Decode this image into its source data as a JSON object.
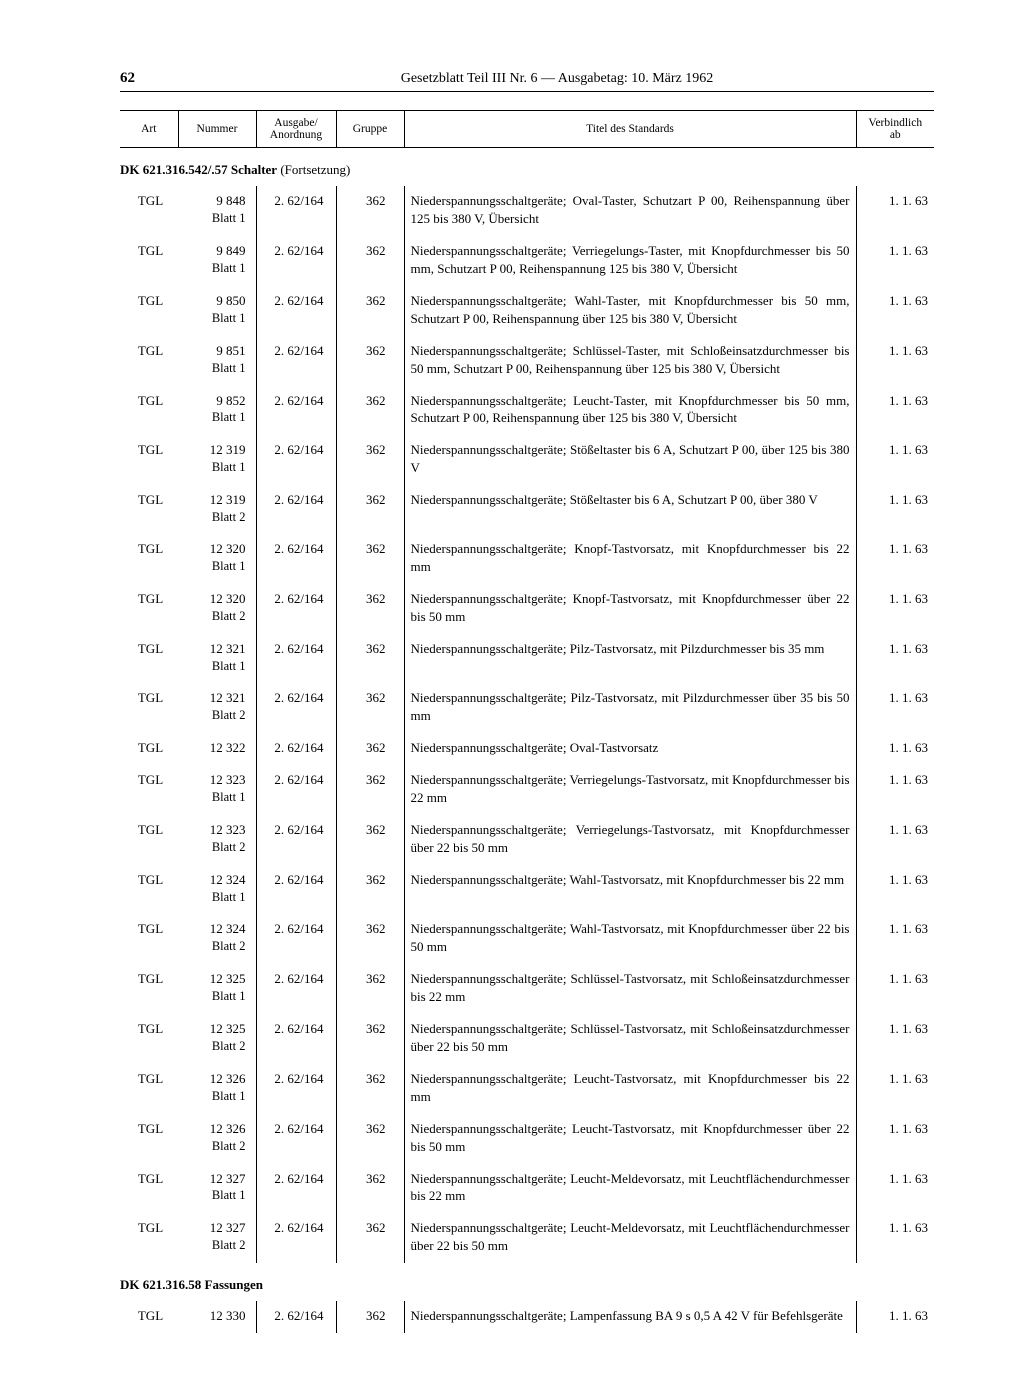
{
  "page_number": "62",
  "header": "Gesetzblatt Teil III Nr. 6 — Ausgabetag: 10. März 1962",
  "columns": {
    "art": "Art",
    "nummer": "Nummer",
    "ausgabe": "Ausgabe/\nAnordnung",
    "gruppe": "Gruppe",
    "titel": "Titel des Standards",
    "verbindlich": "Verbindlich\nab"
  },
  "section1": {
    "code": "DK 621.316.542/.57 Schalter",
    "suffix": "(Fortsetzung)"
  },
  "section2": {
    "code": "DK 621.316.58 Fassungen"
  },
  "rows1": [
    {
      "art": "TGL",
      "num": "9 848",
      "sub": "Blatt 1",
      "ausg": "2. 62/164",
      "grp": "362",
      "title": "Niederspannungsschaltgeräte; Oval-Taster, Schutz­art P 00, Reihenspannung über 125 bis 380 V, Übersicht",
      "verb": "1.  1. 63"
    },
    {
      "art": "TGL",
      "num": "9 849",
      "sub": "Blatt 1",
      "ausg": "2. 62/164",
      "grp": "362",
      "title": "Niederspannungsschaltgeräte; Verriegelungs-Taster, mit Knopfdurchmesser bis 50 mm, Schutz­art P 00, Reihenspannung 125 bis 380 V, Übersicht",
      "verb": "1.  1. 63"
    },
    {
      "art": "TGL",
      "num": "9 850",
      "sub": "Blatt 1",
      "ausg": "2. 62/164",
      "grp": "362",
      "title": "Niederspannungsschaltgeräte; Wahl-Taster, mit Knopfdurchmesser bis 50 mm, Schutzart P 00, Reihenspannung über 125 bis 380 V, Übersicht",
      "verb": "1.  1. 63"
    },
    {
      "art": "TGL",
      "num": "9 851",
      "sub": "Blatt 1",
      "ausg": "2. 62/164",
      "grp": "362",
      "title": "Niederspannungsschaltgeräte; Schlüssel-Taster, mit Schloßeinsatzdurchmesser bis 50 mm, Schutzart P 00, Reihenspannung über 125 bis 380 V, Über­sicht",
      "verb": "1.  1. 63"
    },
    {
      "art": "TGL",
      "num": "9 852",
      "sub": "Blatt 1",
      "ausg": "2. 62/164",
      "grp": "362",
      "title": "Niederspannungsschaltgeräte; Leucht-Taster, mit Knopfdurchmesser bis 50 mm, Schutzart P 00, Reihenspannung über 125 bis 380 V, Übersicht",
      "verb": "1.  1. 63"
    },
    {
      "art": "TGL",
      "num": "12 319",
      "sub": "Blatt 1",
      "ausg": "2. 62/164",
      "grp": "362",
      "title": "Niederspannungsschaltgeräte; Stößeltaster bis 6 A, Schutzart P 00, über 125 bis 380 V",
      "verb": "1.  1. 63"
    },
    {
      "art": "TGL",
      "num": "12 319",
      "sub": "Blatt 2",
      "ausg": "2. 62/164",
      "grp": "362",
      "title": "Niederspannungsschaltgeräte; Stößeltaster bis 6 A, Schutzart P 00, über 380 V",
      "verb": "1.  1. 63"
    },
    {
      "art": "TGL",
      "num": "12 320",
      "sub": "Blatt 1",
      "ausg": "2. 62/164",
      "grp": "362",
      "title": "Niederspannungsschaltgeräte; Knopf-Tastvorsatz, mit Knopfdurchmesser bis 22 mm",
      "verb": "1.  1. 63"
    },
    {
      "art": "TGL",
      "num": "12 320",
      "sub": "Blatt 2",
      "ausg": "2. 62/164",
      "grp": "362",
      "title": "Niederspannungsschaltgeräte; Knopf-Tastvorsatz, mit Knopfdurchmesser über 22 bis 50 mm",
      "verb": "1.  1. 63"
    },
    {
      "art": "TGL",
      "num": "12 321",
      "sub": "Blatt 1",
      "ausg": "2. 62/164",
      "grp": "362",
      "title": "Niederspannungsschaltgeräte; Pilz-Tastvorsatz, mit Pilzdurchmesser bis 35 mm",
      "verb": "1.  1. 63"
    },
    {
      "art": "TGL",
      "num": "12 321",
      "sub": "Blatt 2",
      "ausg": "2. 62/164",
      "grp": "362",
      "title": "Niederspannungsschaltgeräte; Pilz-Tastvorsatz, mit Pilzdurchmesser über 35 bis 50 mm",
      "verb": "1.  1. 63"
    },
    {
      "art": "TGL",
      "num": "12 322",
      "sub": "",
      "ausg": "2. 62/164",
      "grp": "362",
      "title": "Niederspannungsschaltgeräte; Oval-Tastvorsatz",
      "verb": "1.  1. 63"
    },
    {
      "art": "TGL",
      "num": "12 323",
      "sub": "Blatt 1",
      "ausg": "2. 62/164",
      "grp": "362",
      "title": "Niederspannungsschaltgeräte; Verriegelungs-Tast­vorsatz, mit Knopfdurchmesser bis 22 mm",
      "verb": "1.  1. 63"
    },
    {
      "art": "TGL",
      "num": "12 323",
      "sub": "Blatt 2",
      "ausg": "2. 62/164",
      "grp": "362",
      "title": "Niederspannungsschaltgeräte; Verriegelungs-Tast­vorsatz, mit Knopfdurchmesser über 22 bis 50 mm",
      "verb": "1.  1. 63"
    },
    {
      "art": "TGL",
      "num": "12 324",
      "sub": "Blatt 1",
      "ausg": "2. 62/164",
      "grp": "362",
      "title": "Niederspannungsschaltgeräte; Wahl-Tastvorsatz, mit Knopfdurchmesser bis 22 mm",
      "verb": "1.  1. 63"
    },
    {
      "art": "TGL",
      "num": "12 324",
      "sub": "Blatt 2",
      "ausg": "2. 62/164",
      "grp": "362",
      "title": "Niederspannungsschaltgeräte; Wahl-Tastvorsatz, mit Knopfdurchmesser über 22 bis 50 mm",
      "verb": "1.  1. 63"
    },
    {
      "art": "TGL",
      "num": "12 325",
      "sub": "Blatt 1",
      "ausg": "2. 62/164",
      "grp": "362",
      "title": "Niederspannungsschaltgeräte; Schlüssel-Tastvor­satz, mit Schloßeinsatzdurchmesser bis 22 mm",
      "verb": "1.  1. 63"
    },
    {
      "art": "TGL",
      "num": "12 325",
      "sub": "Blatt 2",
      "ausg": "2. 62/164",
      "grp": "362",
      "title": "Niederspannungsschaltgeräte; Schlüssel-Tastvor­satz, mit Schloßeinsatzdurchmesser über 22 bis 50 mm",
      "verb": "1.  1. 63"
    },
    {
      "art": "TGL",
      "num": "12 326",
      "sub": "Blatt 1",
      "ausg": "2. 62/164",
      "grp": "362",
      "title": "Niederspannungsschaltgeräte; Leucht-Tastvorsatz, mit Knopfdurchmesser bis 22 mm",
      "verb": "1.  1. 63"
    },
    {
      "art": "TGL",
      "num": "12 326",
      "sub": "Blatt 2",
      "ausg": "2. 62/164",
      "grp": "362",
      "title": "Niederspannungsschaltgeräte; Leucht-Tastvorsatz, mit Knopfdurchmesser über 22 bis 50 mm",
      "verb": "1.  1. 63"
    },
    {
      "art": "TGL",
      "num": "12 327",
      "sub": "Blatt 1",
      "ausg": "2. 62/164",
      "grp": "362",
      "title": "Niederspannungsschaltgeräte; Leucht-Meldevor­satz, mit Leuchtflächendurchmesser bis 22 mm",
      "verb": "1.  1. 63"
    },
    {
      "art": "TGL",
      "num": "12 327",
      "sub": "Blatt 2",
      "ausg": "2. 62/164",
      "grp": "362",
      "title": "Niederspannungsschaltgeräte; Leucht-Meldevorsatz, mit Leuchtflächendurchmesser über 22 bis 50 mm",
      "verb": "1.  1. 63"
    }
  ],
  "rows2": [
    {
      "art": "TGL",
      "num": "12 330",
      "sub": "",
      "ausg": "2. 62/164",
      "grp": "362",
      "title": "Niederspannungsschaltgeräte; Lampenfassung BA 9 s 0,5 A 42 V für Befehlsgeräte",
      "verb": "1.  1. 63"
    }
  ]
}
